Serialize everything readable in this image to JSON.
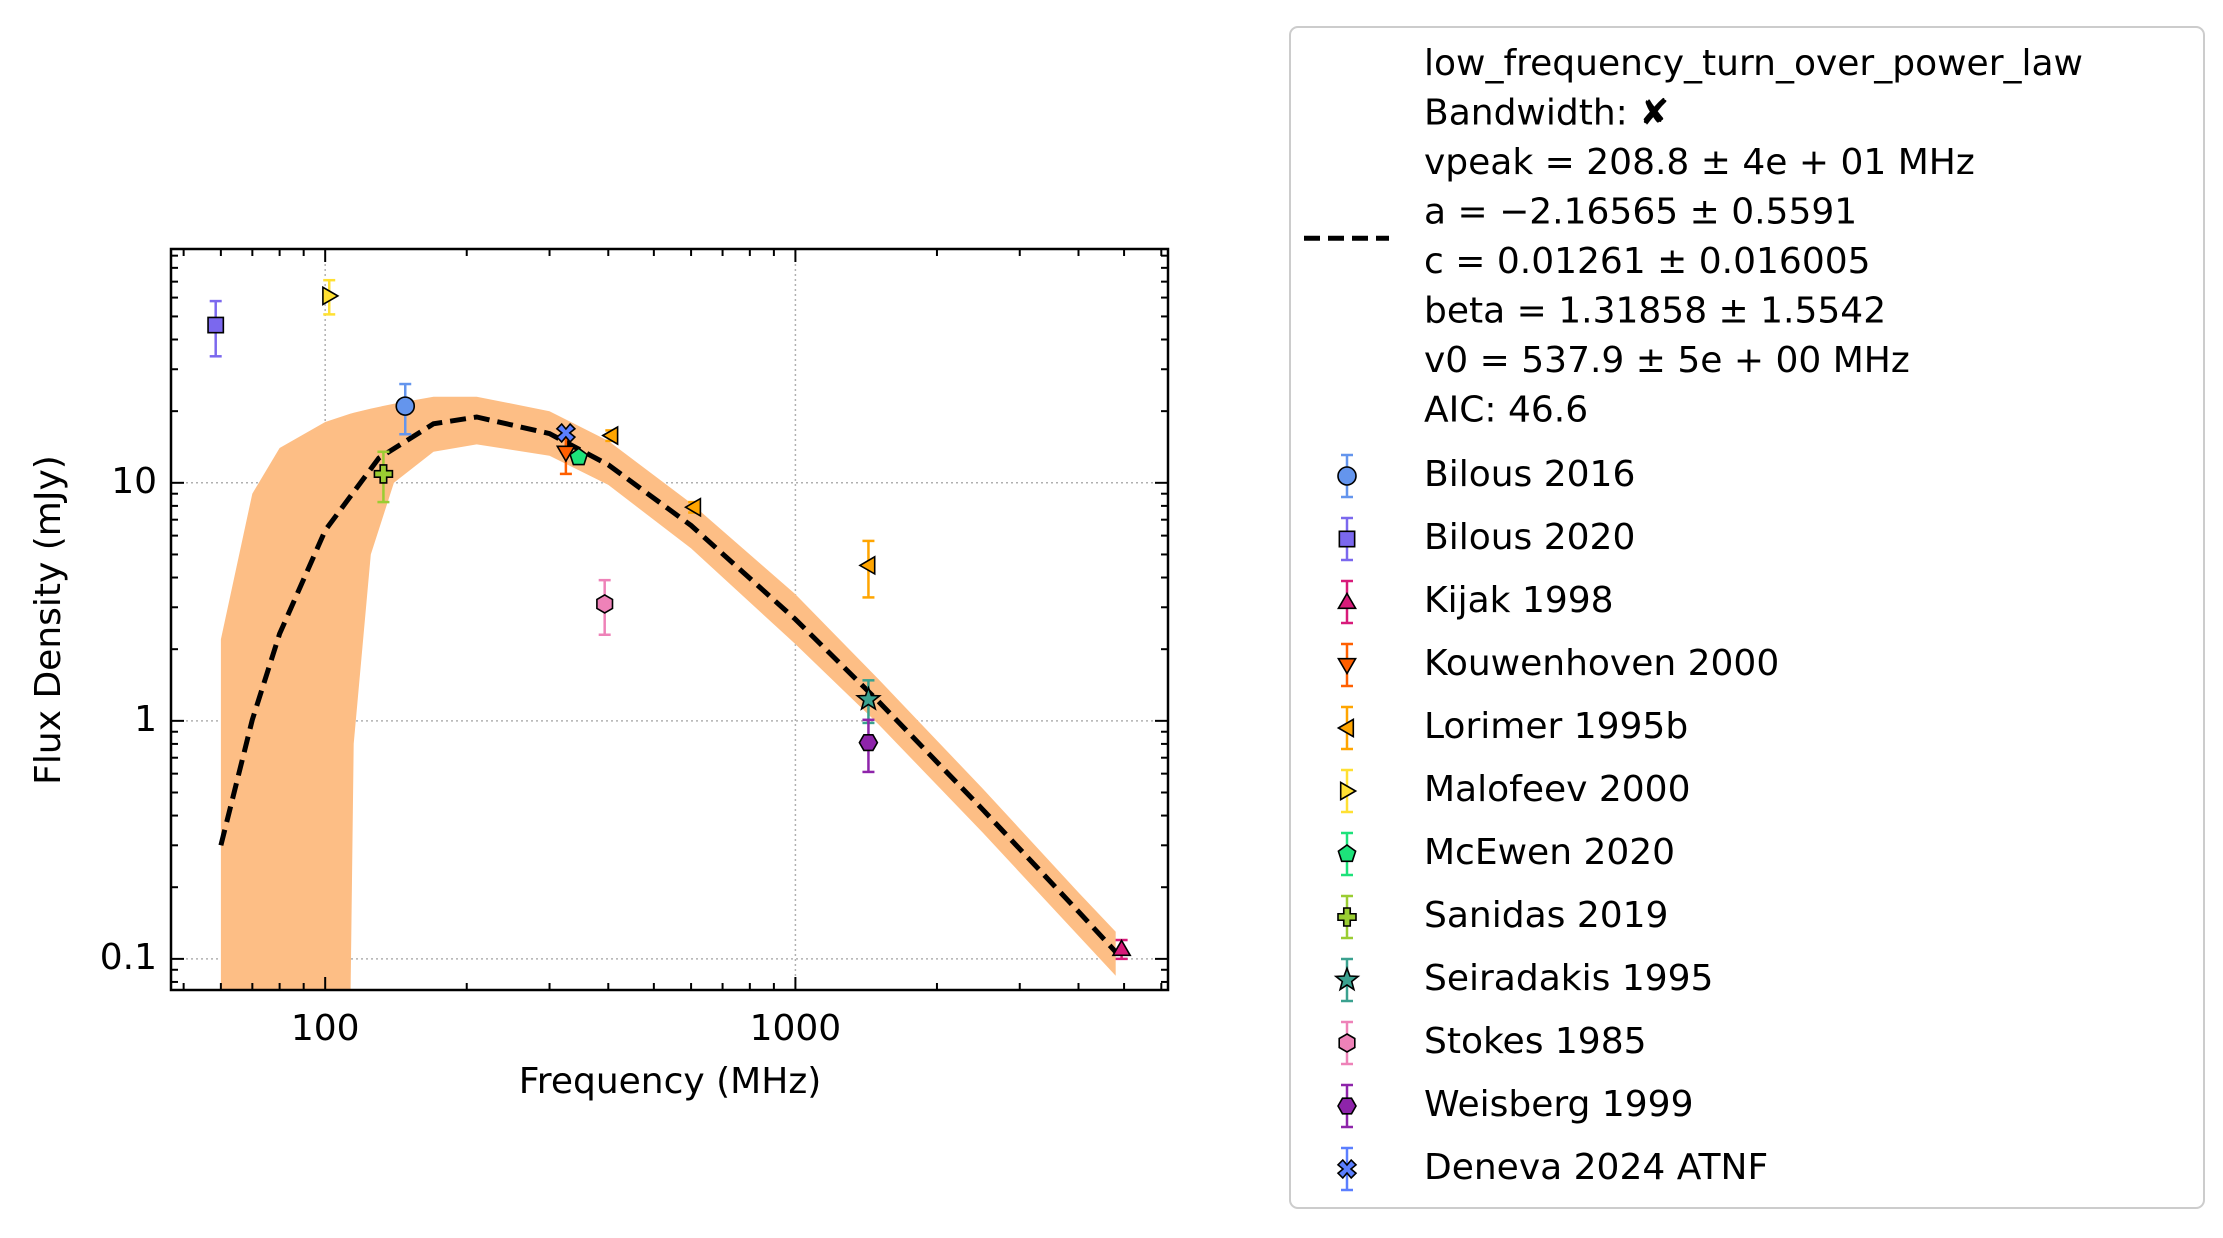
{
  "chart_data": {
    "type": "scatter",
    "xlabel": "Frequency (MHz)",
    "ylabel": "Flux Density (mJy)",
    "log_x": true,
    "log_y": true,
    "grid": true,
    "xlim": [
      47,
      6200
    ],
    "ylim": [
      0.074,
      96
    ],
    "xticks": [
      100,
      1000
    ],
    "yticks": [
      0.1,
      1,
      10
    ],
    "xminorticks": [
      50,
      60,
      70,
      80,
      90,
      200,
      300,
      400,
      500,
      600,
      700,
      800,
      900,
      2000,
      3000,
      4000,
      5000,
      6000
    ],
    "yminorticks": [
      0.08,
      0.09,
      0.2,
      0.3,
      0.4,
      0.5,
      0.6,
      0.7,
      0.8,
      0.9,
      2,
      3,
      4,
      5,
      6,
      7,
      8,
      9,
      20,
      30,
      40,
      50,
      60,
      70,
      80,
      90
    ],
    "legend": "outside-right",
    "fit": {
      "color": "#000000",
      "label_lines": [
        "low_frequency_turn_over_power_law",
        "Bandwidth: ✘",
        "vpeak = 208.8 ± 4e + 01 MHz",
        "a = −2.16565 ± 0.5591",
        "c = 0.01261 ± 0.016005",
        "beta = 1.31858 ± 1.5542",
        "v0 = 537.9 ± 5e + 00 MHz",
        "AIC: 46.6"
      ],
      "x": [
        60,
        70,
        80,
        100,
        130,
        170,
        210,
        300,
        400,
        600,
        1000,
        1500,
        2500,
        4000,
        4800
      ],
      "values": [
        0.3,
        1.01,
        2.32,
        6.31,
        12.7,
        17.7,
        18.9,
        16.1,
        11.9,
        6.62,
        2.67,
        1.21,
        0.425,
        0.158,
        0.107
      ]
    },
    "band": {
      "color": "#fdbe85",
      "x": [
        60,
        70,
        80,
        100,
        113,
        115,
        125,
        140,
        170,
        210,
        300,
        400,
        600,
        1000,
        1500,
        2500,
        4000,
        4800
      ],
      "lower": [
        0.05,
        0.05,
        0.05,
        0.05,
        0.05,
        0.8,
        5,
        10,
        13.5,
        14.5,
        13,
        9.8,
        5.3,
        2.1,
        0.97,
        0.34,
        0.125,
        0.085
      ],
      "upper": [
        2.2,
        9,
        14,
        18,
        19.5,
        19.7,
        20.5,
        21.5,
        23,
        23,
        20,
        15,
        8.2,
        3.4,
        1.5,
        0.52,
        0.19,
        0.13
      ]
    },
    "series": [
      {
        "name": "Bilous 2016",
        "color": "#6495ed",
        "marker": "o",
        "x": [
          148
        ],
        "values": [
          21
        ],
        "yerr": [
          5
        ]
      },
      {
        "name": "Bilous 2020",
        "color": "#7b68ee",
        "marker": "s",
        "x": [
          58.5
        ],
        "values": [
          46
        ],
        "yerr": [
          12
        ]
      },
      {
        "name": "Kijak 1998",
        "color": "#d81b7a",
        "marker": "^",
        "x": [
          4940
        ],
        "values": [
          0.11
        ],
        "yerr": [
          0.01
        ]
      },
      {
        "name": "Kouwenhoven 2000",
        "color": "#ff5f00",
        "marker": "v",
        "x": [
          325
        ],
        "values": [
          13.4
        ],
        "yerr": [
          2.5
        ]
      },
      {
        "name": "Lorimer 1995b",
        "color": "#ffa500",
        "marker": "<",
        "x": [
          406,
          609,
          1430
        ],
        "values": [
          15.8,
          7.9,
          4.5
        ],
        "yerr": [
          0.8,
          0.4,
          1.2
        ]
      },
      {
        "name": "Malofeev 2000",
        "color": "#ffe033",
        "marker": ">",
        "x": [
          102
        ],
        "values": [
          61
        ],
        "yerr": [
          10
        ]
      },
      {
        "name": "McEwen 2020",
        "color": "#1de27a",
        "marker": "p",
        "x": [
          346
        ],
        "values": [
          12.8
        ],
        "yerr": [
          0.6
        ]
      },
      {
        "name": "Sanidas 2019",
        "color": "#9acd32",
        "marker": "P",
        "x": [
          133
        ],
        "values": [
          10.9
        ],
        "yerr": [
          2.6
        ]
      },
      {
        "name": "Seiradakis 1995",
        "color": "#3aa18f",
        "marker": "*",
        "x": [
          1430
        ],
        "values": [
          1.23
        ],
        "yerr": [
          0.25
        ]
      },
      {
        "name": "Stokes 1985",
        "color": "#ee82b8",
        "marker": "h",
        "x": [
          393
        ],
        "values": [
          3.1
        ],
        "yerr": [
          0.8
        ]
      },
      {
        "name": "Weisberg 1999",
        "color": "#8e24aa",
        "marker": "H",
        "x": [
          1430
        ],
        "values": [
          0.81
        ],
        "yerr": [
          0.2
        ]
      },
      {
        "name": "Deneva 2024 ATNF",
        "color": "#5b7fff",
        "marker": "X",
        "x": [
          325
        ],
        "values": [
          16.2
        ],
        "yerr": [
          0.5
        ]
      }
    ]
  }
}
